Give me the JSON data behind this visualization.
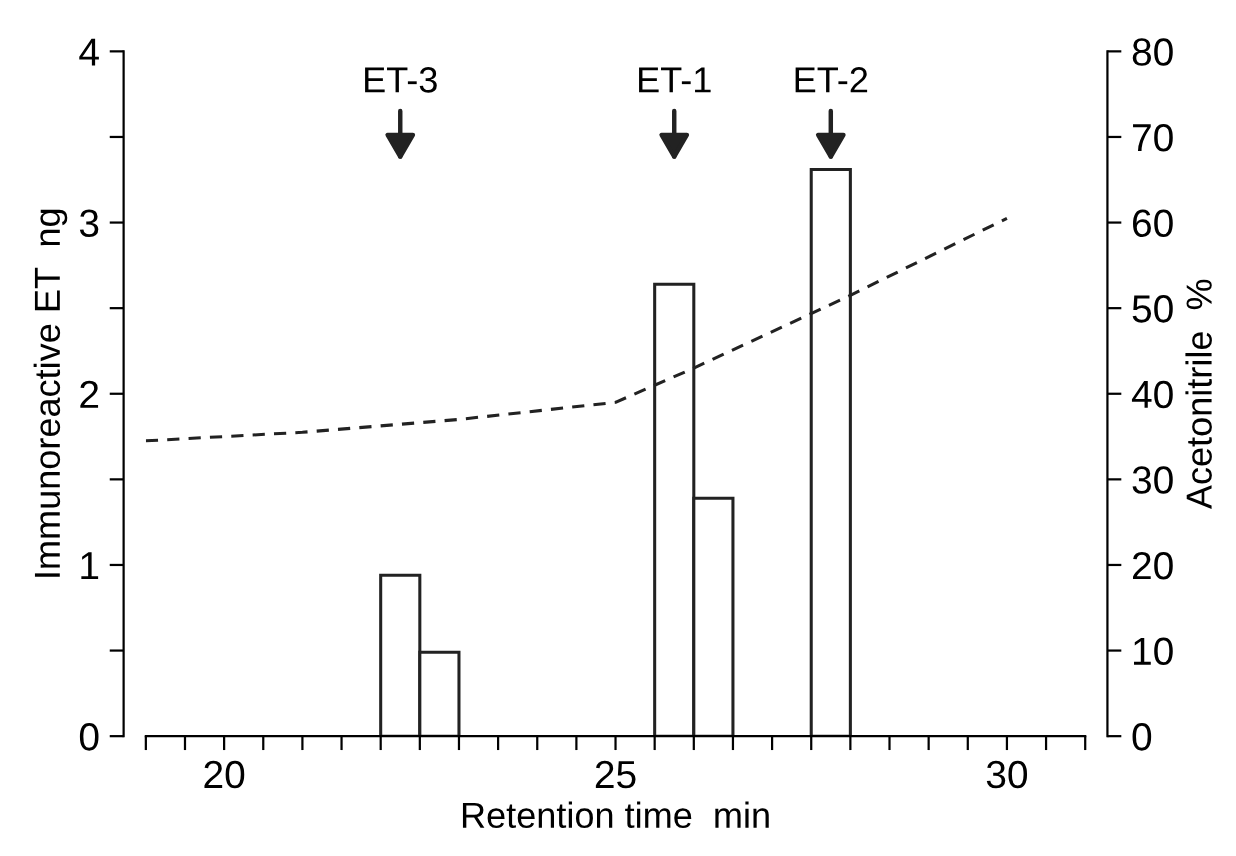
{
  "chart_data": {
    "type": "histogram",
    "xlabel": "Retention time  min",
    "ylabel": "Immunoreactive ET  ng",
    "y2label": "Acetonitrile  %",
    "bins": [
      22.0,
      22.5,
      23.0,
      23.5,
      24.0,
      24.5,
      25.0,
      25.5,
      26.0,
      26.5,
      27.0,
      27.5,
      28.0
    ],
    "series": [
      {
        "color": "#ffffff",
        "values": [
          0.94,
          0.49,
          null,
          null,
          null,
          null,
          null,
          2.64,
          1.39,
          null,
          null,
          3.31
        ]
      },
      {
        "type": "line",
        "axis": "y2",
        "color": "#222222",
        "line_style": "dashed",
        "x": [
          19,
          21,
          23,
          25,
          26,
          28,
          30
        ],
        "values": [
          34.5,
          35.5,
          37,
          39,
          43,
          51.5,
          60.5
        ]
      }
    ],
    "annotations": [
      {
        "text": "ET-3",
        "x": 22.25
      },
      {
        "text": "ET-1",
        "x": 25.75
      },
      {
        "text": "ET-2",
        "x": 27.75
      }
    ],
    "xlim": [
      19,
      31
    ],
    "xticks": [
      {
        "value": 19.0,
        "label": null
      },
      {
        "value": 19.5,
        "label": null
      },
      20,
      {
        "value": 20.5,
        "label": null
      },
      {
        "value": 21.0,
        "label": null
      },
      {
        "value": 21.5,
        "label": null
      },
      {
        "value": 22.0,
        "label": null
      },
      {
        "value": 22.5,
        "label": null
      },
      {
        "value": 23.0,
        "label": null
      },
      {
        "value": 23.5,
        "label": null
      },
      {
        "value": 24.0,
        "label": null
      },
      {
        "value": 24.5,
        "label": null
      },
      25,
      {
        "value": 25.5,
        "label": null
      },
      {
        "value": 26.0,
        "label": null
      },
      {
        "value": 26.5,
        "label": null
      },
      {
        "value": 27.0,
        "label": null
      },
      {
        "value": 27.5,
        "label": null
      },
      {
        "value": 28.0,
        "label": null
      },
      {
        "value": 28.5,
        "label": null
      },
      {
        "value": 29.0,
        "label": null
      },
      {
        "value": 29.5,
        "label": null
      },
      30,
      {
        "value": 30.5,
        "label": null
      },
      {
        "value": 31.0,
        "label": null
      }
    ],
    "ylim": [
      0,
      4
    ],
    "yticks": [
      0,
      {
        "value": 0.5,
        "label": null
      },
      1,
      {
        "value": 1.5,
        "label": null
      },
      2,
      {
        "value": 2.5,
        "label": null
      },
      3,
      {
        "value": 3.5,
        "label": null
      },
      4
    ],
    "y2lim": [
      0,
      80
    ],
    "y2ticks": [
      0,
      10,
      20,
      30,
      40,
      50,
      60,
      70,
      80
    ],
    "grid": false,
    "legend": false
  }
}
